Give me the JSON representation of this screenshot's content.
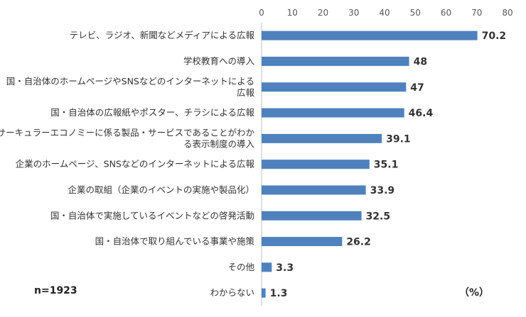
{
  "chart_data": {
    "type": "bar",
    "orientation": "horizontal",
    "categories": [
      "テレビ、ラジオ、新聞などメディアによる広報",
      "学校教育への導入",
      "国・自治体のホームページやSNSなどのインターネットによる広報",
      "国・自治体の広報紙やポスター、チラシによる広報",
      "サーキュラーエコノミーに係る製品・サービスであることがわかる表示制度の導入",
      "企業のホームページ、SNSなどのインターネットによる広報",
      "企業の取組（企業のイベントの実施や製品化）",
      "国・自治体で実施しているイベントなどの啓発活動",
      "国・自治体で取り組んでいる事業や施策",
      "その他",
      "わからない"
    ],
    "category_lines": [
      [
        "テレビ、ラジオ、新聞などメディアによる広報"
      ],
      [
        "学校教育への導入"
      ],
      [
        "国・自治体のホームページやSNSなどのインターネットによる",
        "広報"
      ],
      [
        "国・自治体の広報紙やポスター、チラシによる広報"
      ],
      [
        "サーキュラーエコノミーに係る製品・サービスであることがわか",
        "る表示制度の導入"
      ],
      [
        "企業のホームページ、SNSなどのインターネットによる広報"
      ],
      [
        "企業の取組（企業のイベントの実施や製品化）"
      ],
      [
        "国・自治体で実施しているイベントなどの啓発活動"
      ],
      [
        "国・自治体で取り組んでいる事業や施策"
      ],
      [
        "その他"
      ],
      [
        "わからない"
      ]
    ],
    "values": [
      70.2,
      48,
      47,
      46.4,
      39.1,
      35.1,
      33.9,
      32.5,
      26.2,
      3.3,
      1.3
    ],
    "value_labels": [
      "70.2",
      "48",
      "47",
      "46.4",
      "39.1",
      "35.1",
      "33.9",
      "32.5",
      "26.2",
      "3.3",
      "1.3"
    ],
    "xlim": [
      0,
      80
    ],
    "xticks": [
      0,
      10,
      20,
      30,
      40,
      50,
      60,
      70,
      80
    ],
    "x_axis_position": "top",
    "grid": false,
    "bar_color": "#4f81bd",
    "unit_label": "（%）",
    "sample_note": "n=1923"
  }
}
